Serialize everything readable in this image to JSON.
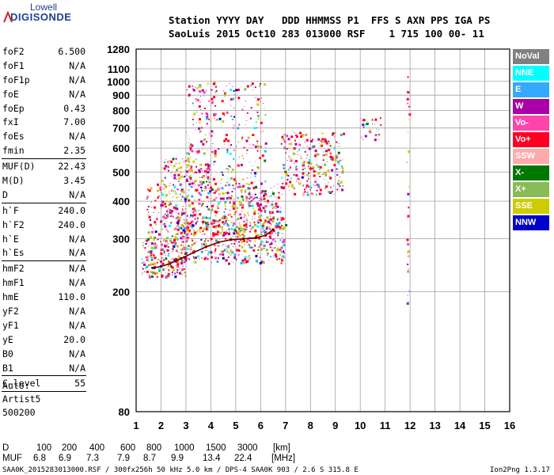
{
  "logo": {
    "top": "Lowell",
    "bottom": "DIGISONDE"
  },
  "header": {
    "line1": "Station YYYY DAY   DDD HHMMSS P1  FFS S AXN PPS IGA PS",
    "line2": "SaoLuis 2015 Oct10 283 013000 RSF    1 715 100 00- 11"
  },
  "params": [
    {
      "label": "foF2",
      "value": "6.500"
    },
    {
      "label": "foF1",
      "value": "N/A"
    },
    {
      "label": "foF1p",
      "value": "N/A"
    },
    {
      "label": "foE",
      "value": "N/A"
    },
    {
      "label": "foEp",
      "value": "0.43"
    },
    {
      "label": "fxI",
      "value": "7.00"
    },
    {
      "label": "foEs",
      "value": "N/A"
    },
    {
      "label": "fmin",
      "value": "2.35"
    },
    {
      "sep": true
    },
    {
      "label": "MUF(D)",
      "value": "22.43"
    },
    {
      "label": "M(D)",
      "value": "3.45"
    },
    {
      "label": "D",
      "value": "N/A"
    },
    {
      "sep": true
    },
    {
      "label": "h`F",
      "value": "240.0"
    },
    {
      "label": "h`F2",
      "value": "240.0"
    },
    {
      "label": "h`E",
      "value": "N/A"
    },
    {
      "label": "h`Es",
      "value": "N/A"
    },
    {
      "sep": true
    },
    {
      "label": "hmF2",
      "value": "N/A"
    },
    {
      "label": "hmF1",
      "value": "N/A"
    },
    {
      "label": "hmE",
      "value": "110.0"
    },
    {
      "label": "yF2",
      "value": "N/A"
    },
    {
      "label": "yF1",
      "value": "N/A"
    },
    {
      "label": "yE",
      "value": "20.0"
    },
    {
      "label": "B0",
      "value": "N/A"
    },
    {
      "label": "B1",
      "value": "N/A"
    },
    {
      "sep": true
    },
    {
      "label": "C-level",
      "value": "55"
    },
    {
      "sep": true
    }
  ],
  "autoscale": {
    "line1": "Auto:",
    "line2": "Artist5",
    "line3": "500200"
  },
  "legend": [
    {
      "label": "NoVal",
      "color": "#808080"
    },
    {
      "label": "NNE",
      "color": "#00ffff"
    },
    {
      "label": "E",
      "color": "#33aaff"
    },
    {
      "label": "W",
      "color": "#aa00aa"
    },
    {
      "label": "Vo-",
      "color": "#ff44aa"
    },
    {
      "label": "Vo+",
      "color": "#ff0022"
    },
    {
      "label": "SSW",
      "color": "#ffaaaa"
    },
    {
      "label": "X-",
      "color": "#007700"
    },
    {
      "label": "X+",
      "color": "#88bb55"
    },
    {
      "label": "SSE",
      "color": "#cccc00"
    },
    {
      "label": "NNW",
      "color": "#0000cc"
    }
  ],
  "chart_data": {
    "type": "scatter",
    "title": "",
    "xlabel": "",
    "ylabel": "",
    "xlim": [
      1,
      16
    ],
    "ylim": [
      80,
      1280
    ],
    "y_scale": "log",
    "x_ticks": [
      "1",
      "2",
      "3",
      "4",
      "5",
      "6",
      "7",
      "8",
      "9",
      "10",
      "11",
      "12",
      "13",
      "14",
      "15",
      "16"
    ],
    "y_ticks": [
      {
        "v": 1280,
        "label": "1280"
      },
      {
        "v": 1100,
        "label": "1100"
      },
      {
        "v": 1000,
        "label": "1000"
      },
      {
        "v": 900,
        "label": "900"
      },
      {
        "v": 800,
        "label": "800"
      },
      {
        "v": 700,
        "label": "700"
      },
      {
        "v": 600,
        "label": "600"
      },
      {
        "v": 500,
        "label": "500"
      },
      {
        "v": 400,
        "label": "400"
      },
      {
        "v": 300,
        "label": "300"
      },
      {
        "v": 200,
        "label": "200"
      },
      {
        "v": 80,
        "label": "80"
      }
    ],
    "y_grid": [
      1100,
      1000,
      900,
      800,
      700,
      600,
      500,
      400,
      300,
      200
    ],
    "trace_points": [
      [
        1.7,
        240
      ],
      [
        2.0,
        243
      ],
      [
        2.35,
        248
      ],
      [
        2.8,
        258
      ],
      [
        3.3,
        270
      ],
      [
        3.8,
        282
      ],
      [
        4.3,
        292
      ],
      [
        4.8,
        298
      ],
      [
        5.3,
        300
      ],
      [
        5.8,
        302
      ],
      [
        6.2,
        308
      ],
      [
        6.5,
        322
      ]
    ],
    "echo_regions": [
      {
        "x": [
          1.2,
          3.0
        ],
        "y": [
          225,
          300
        ],
        "n": 220
      },
      {
        "x": [
          2.5,
          7.0
        ],
        "y": [
          250,
          360
        ],
        "n": 520
      },
      {
        "x": [
          2.0,
          4.0
        ],
        "y": [
          330,
          560
        ],
        "n": 260
      },
      {
        "x": [
          4.0,
          6.8
        ],
        "y": [
          310,
          460
        ],
        "n": 260
      },
      {
        "x": [
          3.0,
          6.2
        ],
        "y": [
          380,
          1000
        ],
        "n": 380
      },
      {
        "x": [
          6.8,
          9.3
        ],
        "y": [
          420,
          680
        ],
        "n": 300
      },
      {
        "x": [
          1.4,
          3.0
        ],
        "y": [
          300,
          460
        ],
        "n": 120
      },
      {
        "x": [
          10.0,
          10.8
        ],
        "y": [
          640,
          760
        ],
        "n": 30
      },
      {
        "x": [
          11.85,
          11.95
        ],
        "y": [
          180,
          1150
        ],
        "n": 30
      }
    ]
  },
  "bottom_table": {
    "d_label": "D",
    "d_values": [
      "100",
      "200",
      "400",
      "600",
      "800",
      "1000",
      "1500",
      "3000"
    ],
    "d_unit": "[km]",
    "muf_label": "MUF",
    "muf_values": [
      "6.8",
      "6.9",
      "7.3",
      "7.9",
      "8.7",
      "9.9",
      "13.4",
      "22.4"
    ],
    "muf_unit": "[MHz]"
  },
  "footer": {
    "left": "SAA0K_2015283013000.RSF / 300fx256h 50 kHz 5.0 km / DPS-4 SAA0K 903 / 2.6 S 315.8 E",
    "right": "Ion2Png 1.3.17"
  }
}
